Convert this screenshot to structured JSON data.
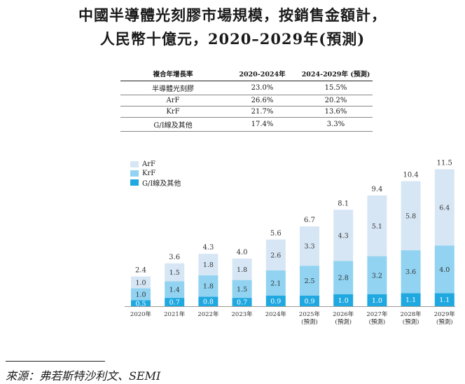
{
  "title": {
    "line1": "中國半導體光刻膠市場規模，按銷售金額計，",
    "line2": "人民幣十億元，2020–2029年(預測)"
  },
  "cagr_table": {
    "header": [
      "複合年增長率",
      "2020-2024年",
      "2024-2029年 (預測)"
    ],
    "rows": [
      [
        "半導體光刻膠",
        "23.0%",
        "15.5%"
      ],
      [
        "ArF",
        "26.6%",
        "20.2%"
      ],
      [
        "KrF",
        "21.7%",
        "13.6%"
      ],
      [
        "G/I線及其他",
        "17.4%",
        "3.3%"
      ]
    ]
  },
  "colors": {
    "ArF": "#d7e6f4",
    "KrF": "#91d3f1",
    "GI": "#20a8e0"
  },
  "chart_data": {
    "type": "bar",
    "stacked": true,
    "title": "中國半導體光刻膠市場規模，按銷售金額計，人民幣十億元，2020–2029年(預測)",
    "categories": [
      "2020年",
      "2021年",
      "2022年",
      "2023年",
      "2024年",
      "2025年",
      "2026年",
      "2027年",
      "2028年",
      "2029年"
    ],
    "category_sublabels": [
      "",
      "",
      "",
      "",
      "",
      "(預測)",
      "(預測)",
      "(預測)",
      "(預測)",
      "(預測)"
    ],
    "series": [
      {
        "name": "G/I線及其他",
        "values": [
          0.5,
          0.7,
          0.8,
          0.7,
          0.9,
          0.9,
          1.0,
          1.0,
          1.1,
          1.1
        ]
      },
      {
        "name": "KrF",
        "values": [
          1.0,
          1.4,
          1.8,
          1.5,
          2.1,
          2.5,
          2.8,
          3.2,
          3.6,
          4.0
        ]
      },
      {
        "name": "ArF",
        "values": [
          1.0,
          1.5,
          1.8,
          1.8,
          2.6,
          3.3,
          4.3,
          5.1,
          5.8,
          6.4
        ]
      }
    ],
    "totals": [
      2.4,
      3.6,
      4.3,
      4.0,
      5.6,
      6.7,
      8.1,
      9.4,
      10.4,
      11.5
    ],
    "legend": [
      "ArF",
      "KrF",
      "G/I線及其他"
    ],
    "legend_position": "top-left",
    "ylim": [
      0,
      11.5
    ]
  },
  "source": "來源：弗若斯特沙利文、SEMI"
}
